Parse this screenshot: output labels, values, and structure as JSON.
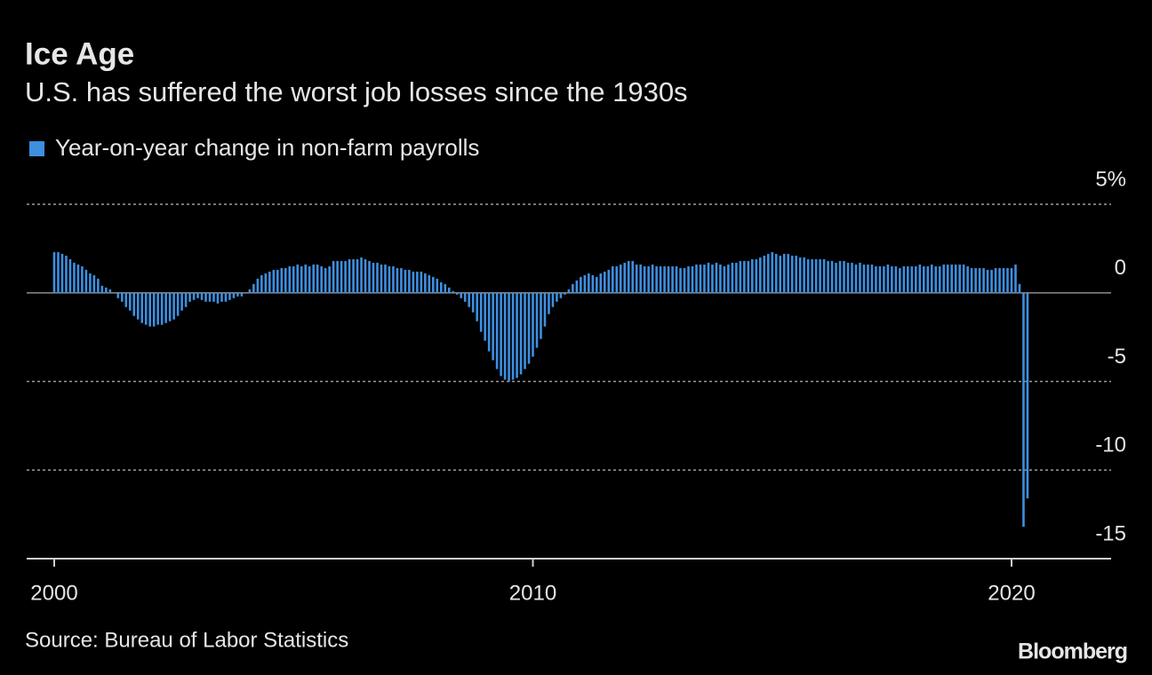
{
  "chart_data": {
    "type": "bar",
    "title": "Ice Age",
    "subtitle": "U.S. has suffered the worst job losses since the 1930s",
    "source": "Source: Bureau of Labor Statistics",
    "logo": "Bloomberg",
    "categories": [
      "2000",
      null,
      null,
      null,
      null,
      null,
      null,
      null,
      null,
      null,
      null,
      null,
      null,
      null,
      null,
      null,
      null,
      null,
      null,
      null,
      null,
      null,
      null,
      null,
      null,
      null,
      null,
      null,
      null,
      null,
      null,
      null,
      null,
      null,
      null,
      null,
      null,
      null,
      null,
      null,
      null,
      null,
      null,
      null,
      null,
      null,
      null,
      null,
      null,
      null,
      null,
      null,
      null,
      null,
      null,
      null,
      null,
      null,
      null,
      null,
      null,
      null,
      null,
      null,
      null,
      null,
      null,
      null,
      null,
      null,
      null,
      null,
      null,
      null,
      null,
      null,
      null,
      null,
      null,
      null,
      null,
      null,
      null,
      null,
      null,
      null,
      null,
      null,
      null,
      null,
      null,
      null,
      null,
      null,
      null,
      null,
      null,
      null,
      null,
      null,
      null,
      null,
      null,
      null,
      null,
      null,
      null,
      null,
      null,
      null,
      null,
      null,
      null,
      null,
      null,
      null,
      null,
      null,
      null,
      null,
      "2010",
      null,
      null,
      null,
      null,
      null,
      null,
      null,
      null,
      null,
      null,
      null,
      null,
      null,
      null,
      null,
      null,
      null,
      null,
      null,
      null,
      null,
      null,
      null,
      null,
      null,
      null,
      null,
      null,
      null,
      null,
      null,
      null,
      null,
      null,
      null,
      null,
      null,
      null,
      null,
      null,
      null,
      null,
      null,
      null,
      null,
      null,
      null,
      null,
      null,
      null,
      null,
      null,
      null,
      null,
      null,
      null,
      null,
      null,
      null,
      null,
      null,
      null,
      null,
      null,
      null,
      null,
      null,
      null,
      null,
      null,
      null,
      null,
      null,
      null,
      null,
      null,
      null,
      null,
      null,
      null,
      null,
      null,
      null,
      null,
      null,
      null,
      null,
      null,
      null,
      null,
      null,
      null,
      null,
      null,
      null,
      null,
      null,
      null,
      null,
      null,
      null,
      null,
      null,
      null,
      null,
      null,
      null,
      null,
      null,
      null,
      null,
      null,
      null,
      null,
      null,
      null,
      null,
      null,
      null,
      "2020",
      null,
      null,
      null,
      null
    ],
    "series": [
      {
        "name": "Year-on-year change in non-farm payrolls",
        "color": "#3e8fe0",
        "values": [
          2.3,
          2.3,
          2.2,
          2.1,
          1.9,
          1.7,
          1.6,
          1.5,
          1.3,
          1.1,
          1.0,
          0.8,
          0.4,
          0.3,
          0.2,
          0.0,
          -0.3,
          -0.5,
          -0.8,
          -1.0,
          -1.3,
          -1.5,
          -1.7,
          -1.8,
          -1.9,
          -1.9,
          -1.8,
          -1.8,
          -1.7,
          -1.6,
          -1.5,
          -1.3,
          -1.0,
          -0.8,
          -0.5,
          -0.4,
          -0.3,
          -0.4,
          -0.5,
          -0.5,
          -0.5,
          -0.6,
          -0.5,
          -0.5,
          -0.4,
          -0.3,
          -0.2,
          -0.2,
          0.0,
          0.2,
          0.5,
          0.8,
          1.0,
          1.1,
          1.2,
          1.3,
          1.3,
          1.4,
          1.4,
          1.5,
          1.5,
          1.6,
          1.5,
          1.6,
          1.5,
          1.6,
          1.6,
          1.5,
          1.4,
          1.5,
          1.8,
          1.8,
          1.8,
          1.8,
          1.9,
          1.9,
          1.9,
          2.0,
          1.9,
          1.8,
          1.7,
          1.7,
          1.6,
          1.6,
          1.5,
          1.5,
          1.4,
          1.4,
          1.3,
          1.3,
          1.2,
          1.2,
          1.2,
          1.1,
          1.0,
          0.9,
          0.8,
          0.6,
          0.5,
          0.3,
          0.1,
          -0.1,
          -0.3,
          -0.5,
          -0.8,
          -1.1,
          -1.6,
          -2.2,
          -2.7,
          -3.3,
          -3.8,
          -4.3,
          -4.7,
          -4.9,
          -5.0,
          -4.9,
          -4.8,
          -4.6,
          -4.3,
          -4.0,
          -3.6,
          -3.1,
          -2.6,
          -1.9,
          -1.2,
          -0.8,
          -0.5,
          -0.3,
          -0.1,
          0.2,
          0.5,
          0.7,
          0.9,
          1.0,
          1.1,
          1.0,
          0.9,
          1.1,
          1.2,
          1.3,
          1.5,
          1.5,
          1.6,
          1.7,
          1.8,
          1.8,
          1.6,
          1.6,
          1.5,
          1.5,
          1.6,
          1.5,
          1.5,
          1.5,
          1.5,
          1.5,
          1.5,
          1.4,
          1.4,
          1.5,
          1.5,
          1.6,
          1.6,
          1.6,
          1.7,
          1.6,
          1.7,
          1.6,
          1.5,
          1.6,
          1.7,
          1.7,
          1.8,
          1.8,
          1.8,
          1.9,
          1.9,
          2.0,
          2.1,
          2.2,
          2.3,
          2.2,
          2.1,
          2.2,
          2.2,
          2.1,
          2.1,
          2.0,
          2.0,
          1.9,
          1.9,
          1.9,
          1.9,
          1.9,
          1.8,
          1.8,
          1.7,
          1.8,
          1.8,
          1.7,
          1.7,
          1.6,
          1.7,
          1.6,
          1.6,
          1.6,
          1.5,
          1.5,
          1.5,
          1.6,
          1.5,
          1.5,
          1.4,
          1.5,
          1.5,
          1.5,
          1.5,
          1.6,
          1.5,
          1.5,
          1.6,
          1.5,
          1.5,
          1.6,
          1.6,
          1.6,
          1.6,
          1.6,
          1.6,
          1.5,
          1.4,
          1.4,
          1.4,
          1.4,
          1.3,
          1.3,
          1.4,
          1.4,
          1.4,
          1.4,
          1.4,
          1.6,
          0.5,
          -13.2,
          -11.6
        ]
      }
    ],
    "ylim": [
      -15,
      5
    ],
    "yticks": [
      {
        "value": 5,
        "label": "5%"
      },
      0,
      -5,
      -10,
      -15
    ],
    "grid": true
  }
}
